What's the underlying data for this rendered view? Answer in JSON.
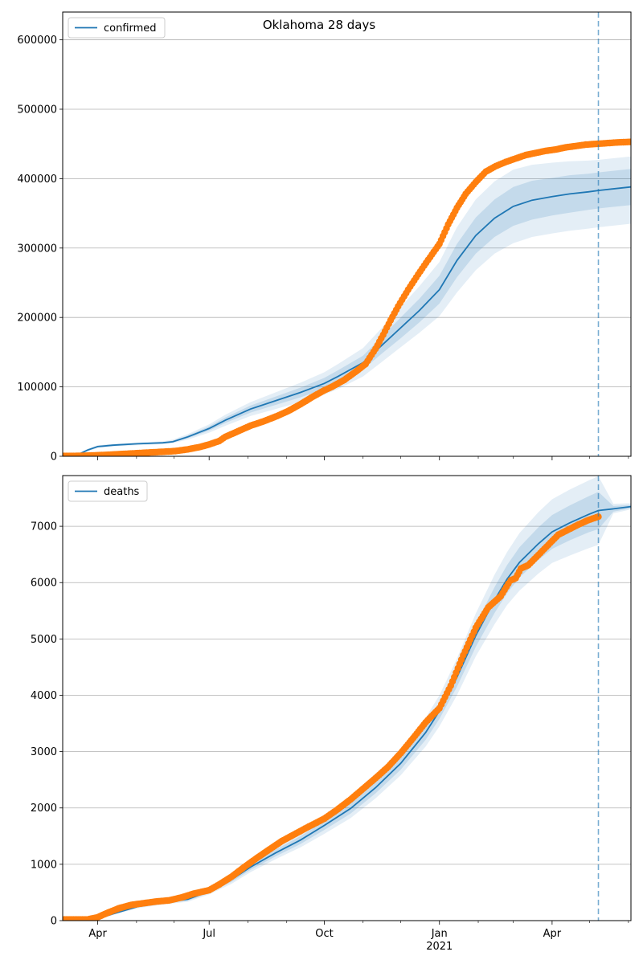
{
  "title": "Oklahoma 28 days",
  "colors": {
    "model": "#1f77b4",
    "observed": "#ff7f0e",
    "band": "#1f77b4",
    "grid": "#b0b0b0",
    "forecast_line": "#1f77b4"
  },
  "x_axis": {
    "range_days": [
      0,
      454
    ],
    "ticks": [
      {
        "day": 28,
        "label": "Apr",
        "sublabel": ""
      },
      {
        "day": 117,
        "label": "Jul",
        "sublabel": ""
      },
      {
        "day": 209,
        "label": "Oct",
        "sublabel": ""
      },
      {
        "day": 301,
        "label": "Jan",
        "sublabel": "2021"
      },
      {
        "day": 391,
        "label": "Apr",
        "sublabel": ""
      }
    ],
    "minor_ticks_days": [
      59,
      89,
      148,
      179,
      240,
      270,
      332,
      360,
      421,
      452
    ],
    "forecast_start_day": 428
  },
  "chart_data": [
    {
      "type": "line",
      "name": "confirmed",
      "legend": "confirmed",
      "legend_position": "top-left",
      "xlabel": "",
      "ylabel": "",
      "ylim": [
        0,
        640000
      ],
      "yticks": [
        0,
        100000,
        200000,
        300000,
        400000,
        500000,
        600000
      ],
      "grid": true,
      "model_fit": {
        "x": [
          0,
          10,
          20,
          28,
          40,
          60,
          80,
          88,
          100,
          117,
          130,
          150,
          170,
          190,
          209,
          220,
          240,
          255,
          270,
          285,
          301,
          315,
          330,
          345,
          360,
          375,
          391,
          405,
          420,
          428,
          454
        ],
        "y": [
          0,
          500,
          9000,
          14000,
          16000,
          18000,
          19500,
          21000,
          28000,
          40000,
          52000,
          68000,
          80000,
          92000,
          105000,
          115000,
          135000,
          160000,
          185000,
          210000,
          240000,
          282000,
          318000,
          343000,
          360000,
          369000,
          374000,
          378000,
          381000,
          383000,
          388000
        ],
        "band_inner": [
          [
            0,
            0,
            8000,
            13000,
            15000,
            17000,
            18500,
            20000,
            26000,
            37000,
            48000,
            63000,
            74000,
            85000,
            97000,
            106000,
            125000,
            148000,
            170000,
            193000,
            220000,
            258000,
            292000,
            316000,
            332000,
            341000,
            347000,
            351000,
            355000,
            357000,
            362000
          ],
          [
            0,
            1000,
            10000,
            15000,
            17000,
            19000,
            20500,
            22500,
            30000,
            43000,
            56000,
            73000,
            86000,
            99000,
            113000,
            124000,
            145000,
            172000,
            200000,
            227000,
            260000,
            306000,
            344000,
            370000,
            388000,
            397000,
            401000,
            405000,
            407000,
            409000,
            414000
          ]
        ],
        "band_outer": [
          [
            0,
            0,
            7000,
            12000,
            14000,
            16000,
            17500,
            19000,
            24000,
            34000,
            44000,
            58000,
            68000,
            78000,
            89000,
            97000,
            115000,
            136000,
            157000,
            178000,
            202000,
            236000,
            268000,
            292000,
            307000,
            316000,
            321000,
            325000,
            328000,
            330000,
            335000
          ],
          [
            0,
            2000,
            11000,
            16000,
            18000,
            20000,
            21500,
            24000,
            32000,
            46000,
            60000,
            78000,
            92000,
            106000,
            121000,
            133000,
            156000,
            185000,
            215000,
            245000,
            280000,
            330000,
            370000,
            396000,
            413000,
            420000,
            423000,
            425000,
            426000,
            427000,
            432000
          ]
        ]
      },
      "observed": {
        "x": [
          0,
          10,
          20,
          28,
          40,
          50,
          60,
          70,
          80,
          90,
          100,
          110,
          117,
          125,
          130,
          140,
          150,
          160,
          170,
          180,
          190,
          200,
          209,
          215,
          225,
          235,
          242,
          250,
          256,
          262,
          268,
          276,
          284,
          292,
          301,
          308,
          315,
          322,
          330,
          338,
          346,
          354,
          362,
          370,
          378,
          386,
          394,
          402,
          410,
          418,
          426,
          434,
          442,
          454
        ],
        "y": [
          500,
          500,
          900,
          1500,
          2500,
          3500,
          4500,
          5500,
          6500,
          7500,
          10000,
          13500,
          17000,
          22000,
          28000,
          36000,
          44000,
          50000,
          57000,
          65000,
          75000,
          86000,
          95000,
          100000,
          110000,
          123000,
          133000,
          155000,
          175000,
          196000,
          216000,
          240000,
          262000,
          283000,
          306000,
          334000,
          358000,
          378000,
          395000,
          410000,
          418000,
          424000,
          429000,
          434000,
          437000,
          440000,
          442000,
          445000,
          447000,
          449000,
          450000,
          451000,
          452000,
          453000
        ]
      }
    },
    {
      "type": "line",
      "name": "deaths",
      "legend": "deaths",
      "legend_position": "top-left",
      "xlabel": "",
      "ylabel": "",
      "ylim": [
        0,
        7900
      ],
      "yticks": [
        0,
        1000,
        2000,
        3000,
        4000,
        5000,
        6000,
        7000
      ],
      "grid": true,
      "model_fit": {
        "x": [
          0,
          20,
          28,
          40,
          60,
          80,
          100,
          117,
          135,
          150,
          170,
          190,
          209,
          230,
          250,
          270,
          290,
          301,
          315,
          330,
          345,
          355,
          365,
          380,
          391,
          405,
          420,
          428,
          440,
          454
        ],
        "y": [
          0,
          0,
          30,
          120,
          250,
          320,
          380,
          520,
          730,
          950,
          1200,
          1430,
          1690,
          1990,
          2360,
          2790,
          3340,
          3720,
          4320,
          5060,
          5690,
          6060,
          6360,
          6690,
          6900,
          7060,
          7210,
          7280,
          7310,
          7350
        ],
        "band_inner": [
          [
            0,
            0,
            25,
            110,
            235,
            300,
            355,
            490,
            690,
            900,
            1140,
            1360,
            1610,
            1900,
            2260,
            2680,
            3210,
            3580,
            4150,
            4860,
            5460,
            5810,
            6090,
            6400,
            6600,
            6750,
            6890,
            6950,
            7260,
            7320
          ],
          [
            0,
            0,
            35,
            130,
            265,
            340,
            405,
            550,
            770,
            1000,
            1260,
            1500,
            1770,
            2080,
            2460,
            2900,
            3470,
            3860,
            4490,
            5260,
            5920,
            6310,
            6630,
            6980,
            7200,
            7370,
            7530,
            7610,
            7360,
            7380
          ]
        ],
        "band_outer": [
          [
            0,
            0,
            20,
            100,
            220,
            285,
            335,
            465,
            655,
            860,
            1090,
            1300,
            1540,
            1820,
            2170,
            2580,
            3090,
            3450,
            4000,
            4690,
            5260,
            5600,
            5860,
            6160,
            6350,
            6480,
            6610,
            6670,
            7230,
            7300
          ],
          [
            0,
            0,
            40,
            140,
            280,
            355,
            425,
            580,
            810,
            1050,
            1320,
            1570,
            1850,
            2170,
            2560,
            3010,
            3600,
            4000,
            4650,
            5450,
            6140,
            6540,
            6880,
            7250,
            7480,
            7650,
            7810,
            7890,
            7400,
            7410
          ]
        ]
      },
      "observed": {
        "x": [
          0,
          10,
          20,
          28,
          35,
          45,
          55,
          65,
          75,
          85,
          95,
          105,
          117,
          125,
          135,
          145,
          155,
          165,
          175,
          185,
          195,
          209,
          220,
          230,
          240,
          250,
          260,
          270,
          280,
          290,
          301,
          310,
          320,
          330,
          340,
          350,
          356,
          358,
          362,
          366,
          372,
          380,
          388,
          396,
          404,
          412,
          420,
          428
        ],
        "y": [
          20,
          20,
          20,
          60,
          130,
          220,
          280,
          310,
          340,
          360,
          410,
          480,
          540,
          640,
          780,
          950,
          1110,
          1260,
          1410,
          1530,
          1650,
          1810,
          1980,
          2150,
          2340,
          2530,
          2730,
          2970,
          3240,
          3520,
          3770,
          4170,
          4710,
          5200,
          5560,
          5760,
          5980,
          6040,
          6080,
          6250,
          6310,
          6490,
          6670,
          6850,
          6940,
          7030,
          7110,
          7170
        ]
      }
    }
  ]
}
